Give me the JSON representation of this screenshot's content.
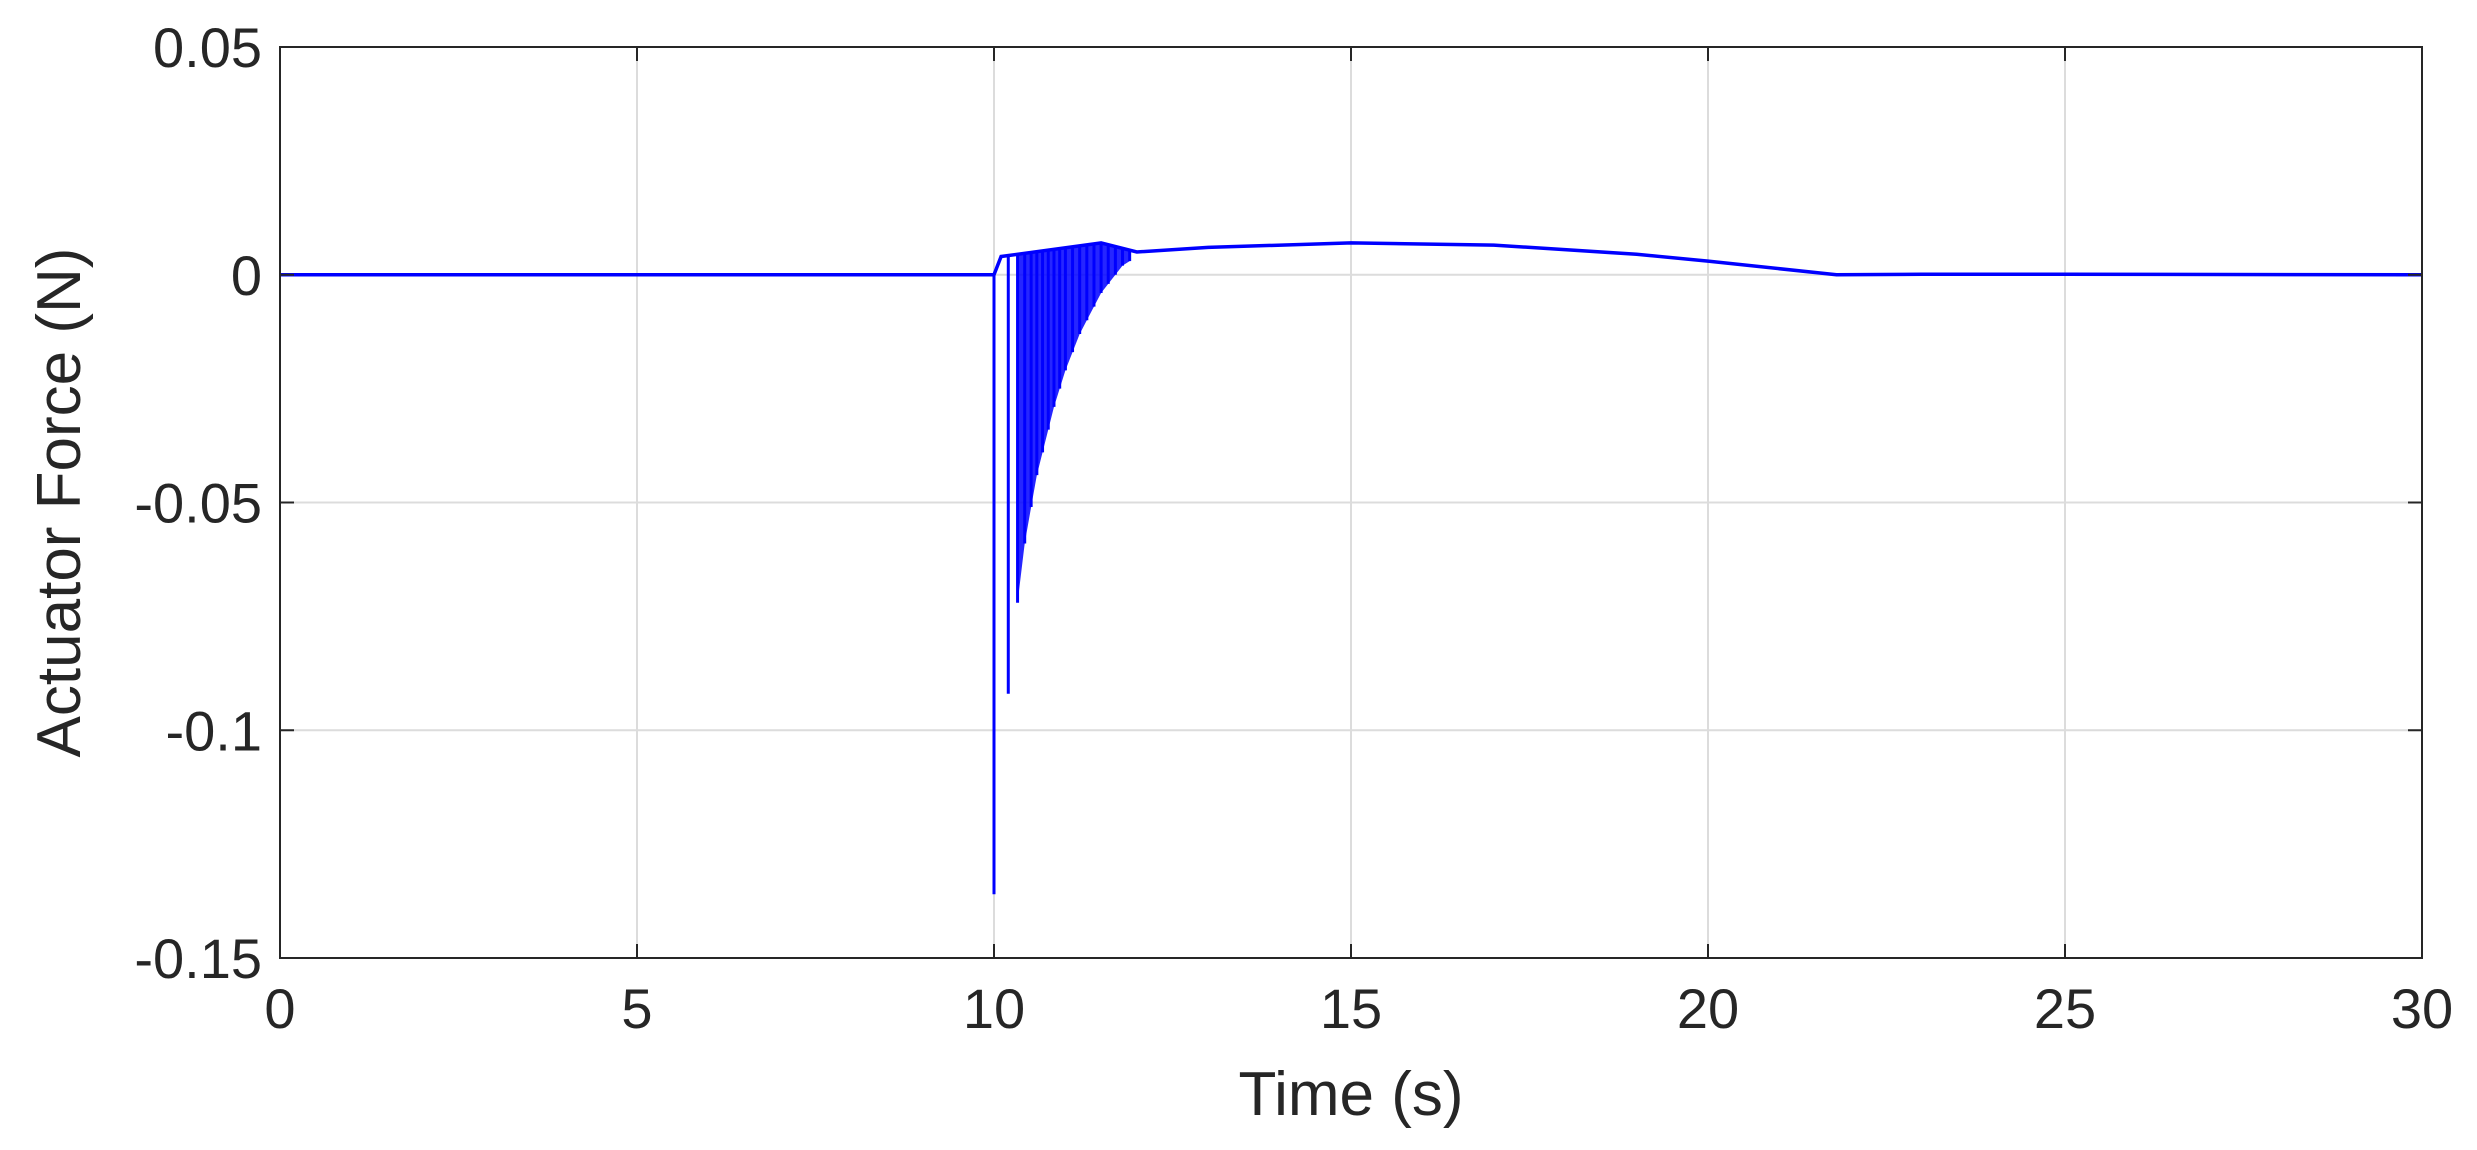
{
  "chart_data": {
    "type": "line",
    "title": "",
    "xlabel": "Time (s)",
    "ylabel": "Actuator Force (N)",
    "xlim": [
      0,
      30
    ],
    "ylim": [
      -0.15,
      0.05
    ],
    "xticks": [
      0,
      5,
      10,
      15,
      20,
      25,
      30
    ],
    "xtick_labels": [
      "0",
      "5",
      "10",
      "15",
      "20",
      "25",
      "30"
    ],
    "yticks": [
      0.05,
      0,
      -0.05,
      -0.1,
      -0.15
    ],
    "ytick_labels": [
      "0.05",
      "0",
      "-0.05",
      "-0.1",
      "-0.15"
    ],
    "grid": true,
    "legend": "none",
    "line_color": "#0000ff",
    "series": [
      {
        "x": [
          0,
          10.0,
          10.1,
          11.5,
          12.0,
          13.0,
          15.0,
          17.0,
          19.0,
          20.0,
          21.8,
          23.0,
          25.0,
          30.0
        ],
        "values": [
          0,
          0,
          0.004,
          0.007,
          0.005,
          0.006,
          0.007,
          0.0065,
          0.0045,
          0.003,
          0.0,
          0.0001,
          0.0001,
          0.0
        ]
      }
    ],
    "spikes": [
      {
        "x": 10.0,
        "value": -0.136
      },
      {
        "x": 10.2,
        "value": -0.092
      },
      {
        "x": 10.33,
        "value": -0.072
      },
      {
        "x": 10.43,
        "value": -0.059
      },
      {
        "x": 10.52,
        "value": -0.051
      },
      {
        "x": 10.6,
        "value": -0.044
      },
      {
        "x": 10.68,
        "value": -0.039
      },
      {
        "x": 10.76,
        "value": -0.034
      },
      {
        "x": 10.84,
        "value": -0.029
      },
      {
        "x": 10.92,
        "value": -0.025
      },
      {
        "x": 11.0,
        "value": -0.021
      },
      {
        "x": 11.1,
        "value": -0.017
      },
      {
        "x": 11.2,
        "value": -0.013
      },
      {
        "x": 11.3,
        "value": -0.01
      },
      {
        "x": 11.4,
        "value": -0.007
      },
      {
        "x": 11.5,
        "value": -0.004
      },
      {
        "x": 11.6,
        "value": -0.002
      },
      {
        "x": 11.7,
        "value": 0.0
      },
      {
        "x": 11.8,
        "value": 0.002
      },
      {
        "x": 11.9,
        "value": 0.003
      }
    ]
  }
}
